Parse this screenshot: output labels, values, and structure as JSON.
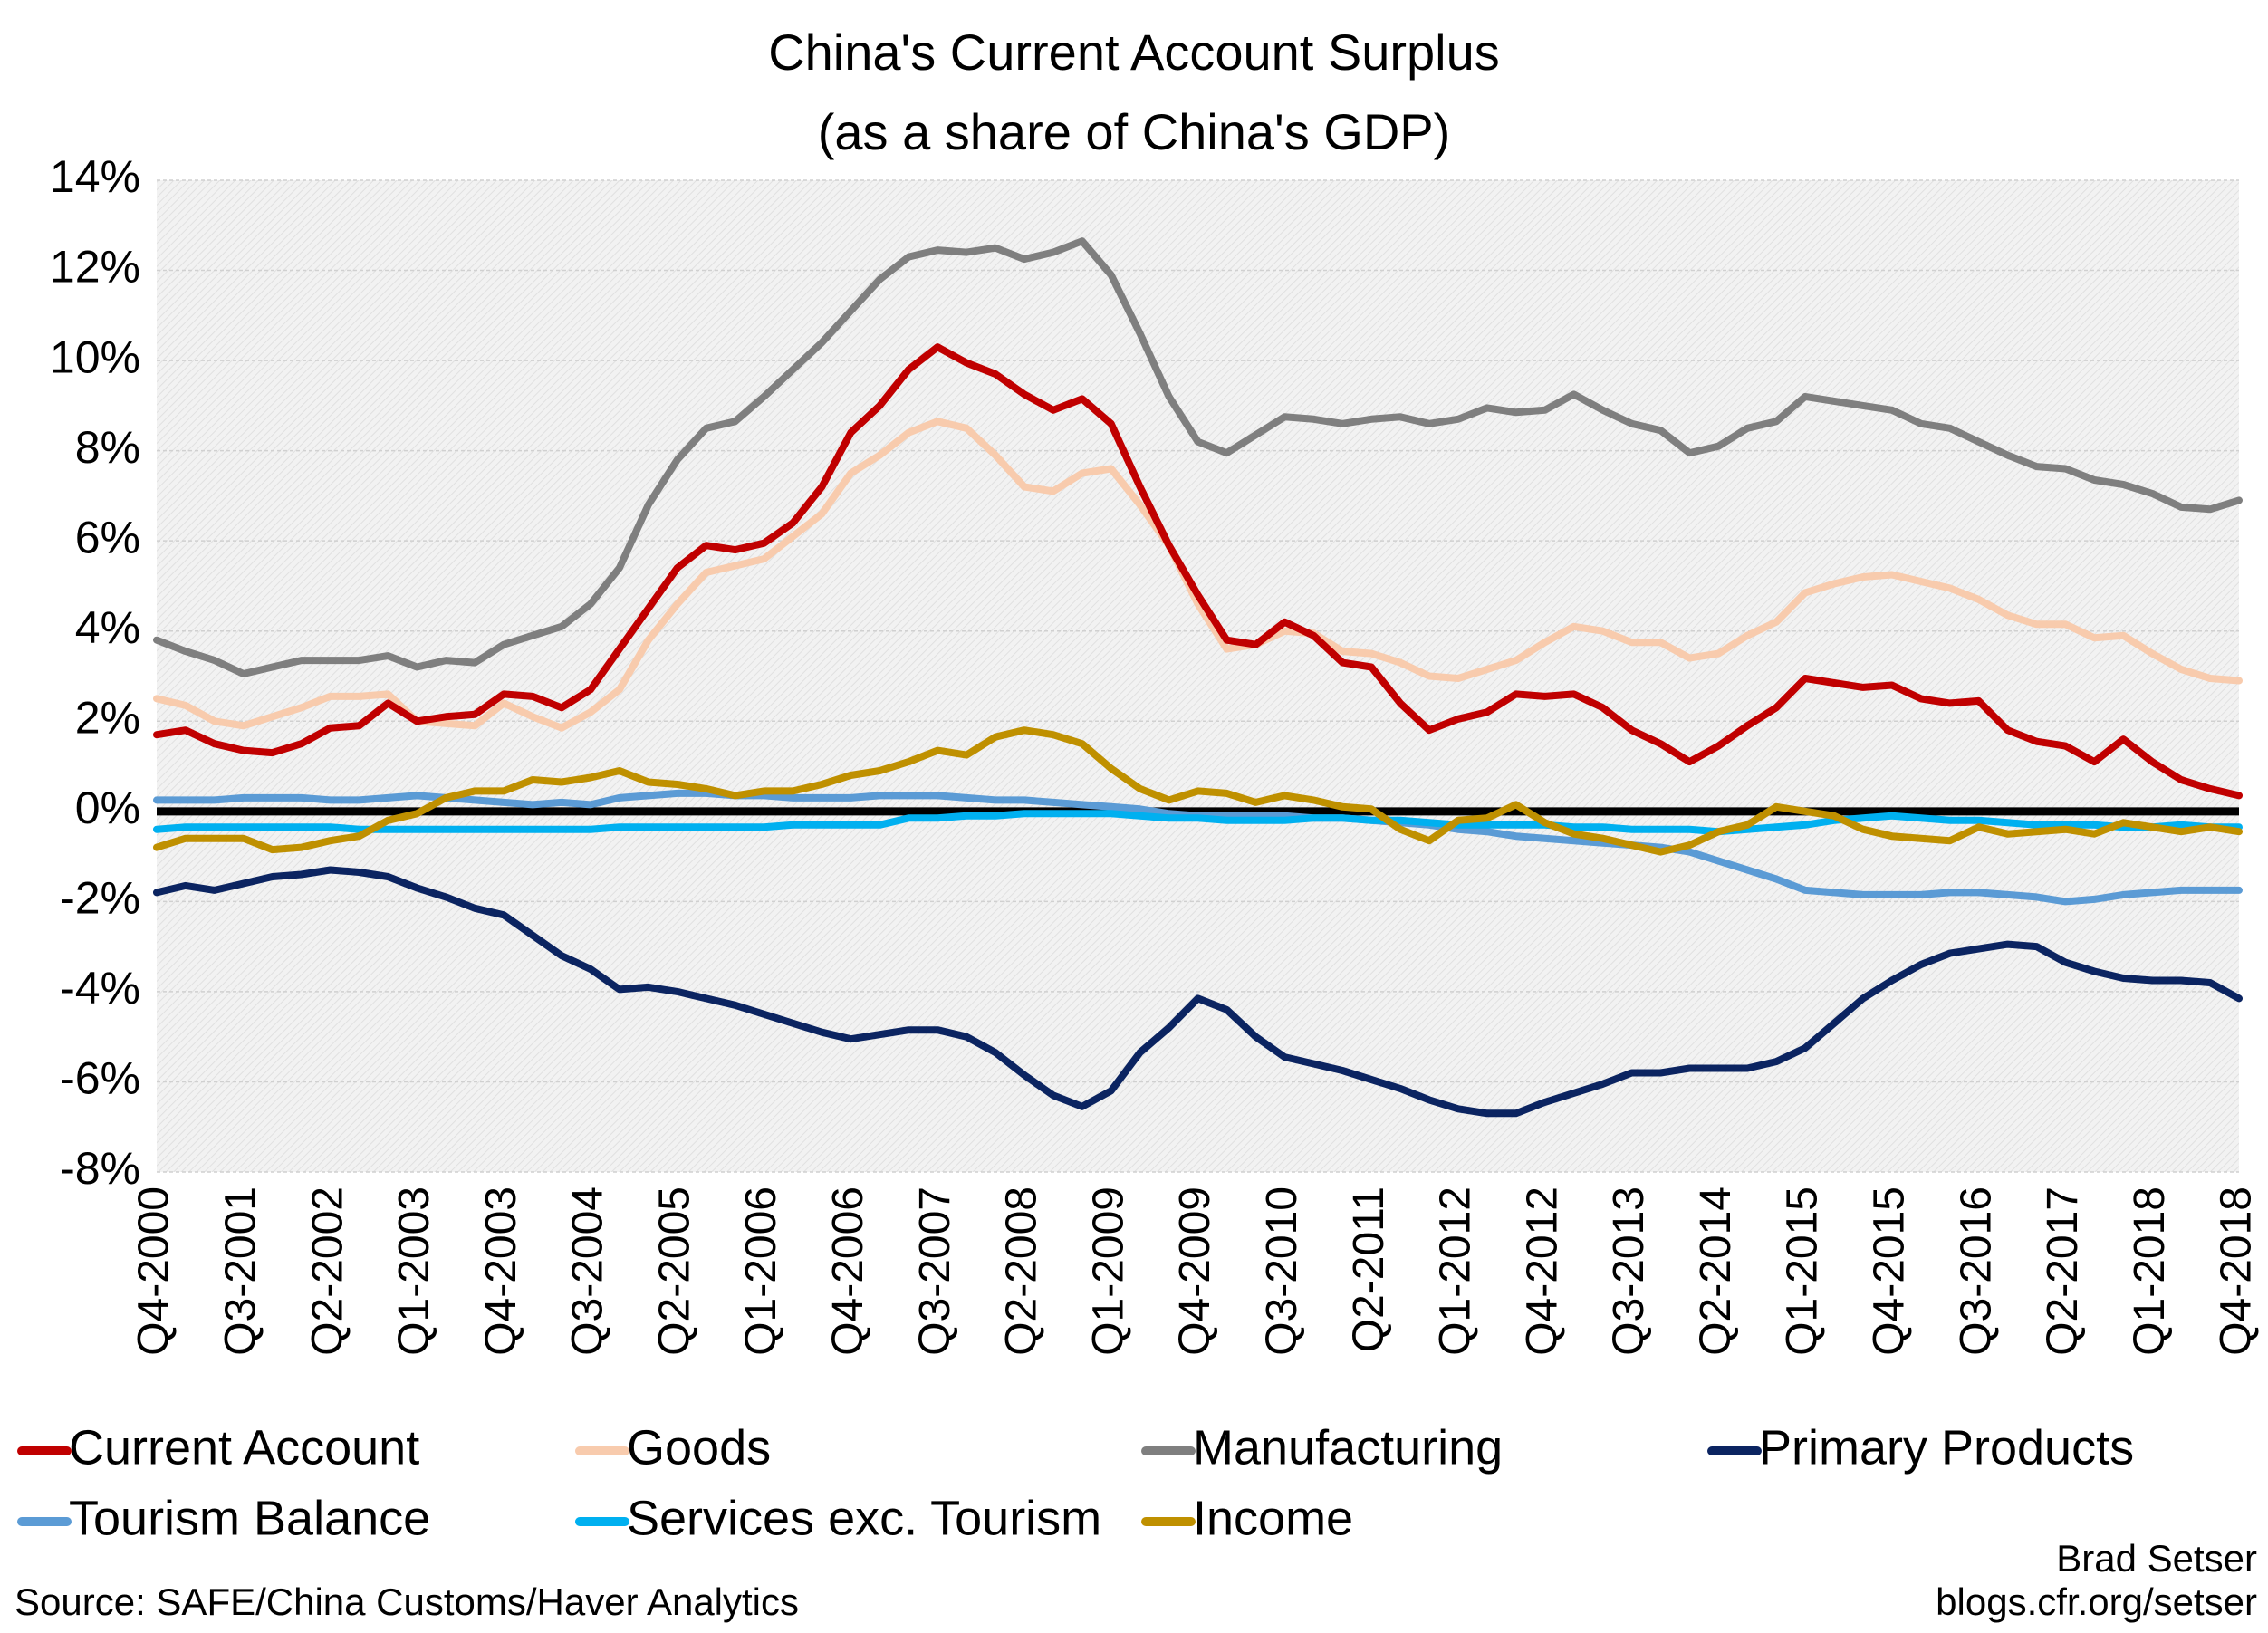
{
  "chart_data": {
    "type": "line",
    "title": "China's Current Account Surplus",
    "subtitle": "(as a share of China's GDP)",
    "source": "Source: SAFE/China Customs/Haver Analytics",
    "credit": [
      "Brad Setser",
      "blogs.cfr.org/setser"
    ],
    "categories": [
      "Q4-2000",
      null,
      null,
      "Q3-2001",
      null,
      null,
      "Q2-2002",
      null,
      null,
      "Q1-2003",
      null,
      null,
      "Q4-2003",
      null,
      null,
      "Q3-2004",
      null,
      null,
      "Q2-2005",
      null,
      null,
      "Q1-2006",
      null,
      null,
      "Q4-2006",
      null,
      null,
      "Q3-2007",
      null,
      null,
      "Q2-2008",
      null,
      null,
      "Q1-2009",
      null,
      null,
      "Q4-2009",
      null,
      null,
      "Q3-2010",
      null,
      null,
      "Q2-2011",
      null,
      null,
      "Q1-2012",
      null,
      null,
      "Q4-2012",
      null,
      null,
      "Q3-2013",
      null,
      null,
      "Q2-2014",
      null,
      null,
      "Q1-2015",
      null,
      null,
      "Q4-2015",
      null,
      null,
      "Q3-2016",
      null,
      null,
      "Q2-2017",
      null,
      null,
      "Q1-2018",
      null,
      null,
      "Q4-2018"
    ],
    "ylim": [
      -8,
      14
    ],
    "yticks": [
      {
        "value": -8,
        "label": "-8%"
      },
      {
        "value": -6,
        "label": "-6%"
      },
      {
        "value": -4,
        "label": "-4%"
      },
      {
        "value": -2,
        "label": "-2%"
      },
      {
        "value": 0,
        "label": "0%"
      },
      {
        "value": 2,
        "label": "2%"
      },
      {
        "value": 4,
        "label": "4%"
      },
      {
        "value": 6,
        "label": "6%"
      },
      {
        "value": 8,
        "label": "8%"
      },
      {
        "value": 10,
        "label": "10%"
      },
      {
        "value": 12,
        "label": "12%"
      },
      {
        "value": 14,
        "label": "14%"
      }
    ],
    "grid": true,
    "series": [
      {
        "name": "Current Account",
        "color": "#c00000",
        "values": [
          1.7,
          1.8,
          1.5,
          1.35,
          1.3,
          1.5,
          1.85,
          1.9,
          2.4,
          2.0,
          2.1,
          2.15,
          2.6,
          2.55,
          2.3,
          2.7,
          3.6,
          4.5,
          5.4,
          5.9,
          5.8,
          5.95,
          6.4,
          7.2,
          8.4,
          9.0,
          9.8,
          10.3,
          9.95,
          9.7,
          9.25,
          8.9,
          9.15,
          8.6,
          7.2,
          5.9,
          4.8,
          3.8,
          3.7,
          4.2,
          3.9,
          3.3,
          3.2,
          2.4,
          1.8,
          2.05,
          2.2,
          2.6,
          2.55,
          2.6,
          2.3,
          1.8,
          1.5,
          1.1,
          1.45,
          1.9,
          2.3,
          2.95,
          2.85,
          2.75,
          2.8,
          2.5,
          2.4,
          2.45,
          1.8,
          1.55,
          1.45,
          1.1,
          1.6,
          1.1,
          0.7,
          0.5,
          0.35
        ]
      },
      {
        "name": "Goods",
        "color": "#f8cbad",
        "values": [
          2.5,
          2.35,
          2.0,
          1.9,
          2.1,
          2.3,
          2.55,
          2.55,
          2.6,
          2.0,
          1.95,
          1.9,
          2.4,
          2.1,
          1.85,
          2.2,
          2.7,
          3.8,
          4.6,
          5.3,
          5.45,
          5.6,
          6.1,
          6.6,
          7.5,
          7.9,
          8.4,
          8.65,
          8.5,
          7.9,
          7.2,
          7.1,
          7.5,
          7.6,
          6.8,
          5.9,
          4.6,
          3.6,
          3.7,
          4.0,
          3.95,
          3.55,
          3.5,
          3.3,
          3.0,
          2.95,
          3.15,
          3.35,
          3.75,
          4.1,
          4.0,
          3.75,
          3.75,
          3.4,
          3.5,
          3.9,
          4.2,
          4.85,
          5.05,
          5.2,
          5.25,
          5.1,
          4.95,
          4.7,
          4.35,
          4.15,
          4.15,
          3.85,
          3.9,
          3.5,
          3.15,
          2.95,
          2.9
        ]
      },
      {
        "name": "Manufacturing",
        "color": "#7f7f7f",
        "values": [
          3.8,
          3.55,
          3.35,
          3.05,
          3.2,
          3.35,
          3.35,
          3.35,
          3.45,
          3.2,
          3.35,
          3.3,
          3.7,
          3.9,
          4.1,
          4.6,
          5.4,
          6.8,
          7.8,
          8.5,
          8.65,
          9.2,
          9.8,
          10.4,
          11.1,
          11.8,
          12.3,
          12.45,
          12.4,
          12.5,
          12.25,
          12.4,
          12.65,
          11.9,
          10.6,
          9.2,
          8.2,
          7.95,
          8.35,
          8.75,
          8.7,
          8.6,
          8.7,
          8.75,
          8.6,
          8.7,
          8.95,
          8.85,
          8.9,
          9.25,
          8.9,
          8.6,
          8.45,
          7.95,
          8.1,
          8.5,
          8.65,
          9.2,
          9.1,
          9.0,
          8.9,
          8.6,
          8.5,
          8.2,
          7.9,
          7.65,
          7.6,
          7.35,
          7.25,
          7.05,
          6.75,
          6.7,
          6.9
        ]
      },
      {
        "name": "Primary Products",
        "color": "#0b2461",
        "values": [
          -1.8,
          -1.65,
          -1.75,
          -1.6,
          -1.45,
          -1.4,
          -1.3,
          -1.35,
          -1.45,
          -1.7,
          -1.9,
          -2.15,
          -2.3,
          -2.75,
          -3.2,
          -3.5,
          -3.95,
          -3.9,
          -4.0,
          -4.15,
          -4.3,
          -4.5,
          -4.7,
          -4.9,
          -5.05,
          -4.95,
          -4.85,
          -4.85,
          -5.0,
          -5.35,
          -5.85,
          -6.3,
          -6.55,
          -6.2,
          -5.35,
          -4.8,
          -4.15,
          -4.4,
          -5.0,
          -5.45,
          -5.6,
          -5.75,
          -5.95,
          -6.15,
          -6.4,
          -6.6,
          -6.7,
          -6.7,
          -6.45,
          -6.25,
          -6.05,
          -5.8,
          -5.8,
          -5.7,
          -5.7,
          -5.7,
          -5.55,
          -5.25,
          -4.7,
          -4.15,
          -3.75,
          -3.4,
          -3.15,
          -3.05,
          -2.95,
          -3.0,
          -3.35,
          -3.55,
          -3.7,
          -3.75,
          -3.75,
          -3.8,
          -4.15
        ]
      },
      {
        "name": "Tourism Balance",
        "color": "#5b9bd5",
        "values": [
          0.25,
          0.25,
          0.25,
          0.3,
          0.3,
          0.3,
          0.25,
          0.25,
          0.3,
          0.35,
          0.3,
          0.25,
          0.2,
          0.15,
          0.2,
          0.15,
          0.3,
          0.35,
          0.4,
          0.4,
          0.35,
          0.35,
          0.3,
          0.3,
          0.3,
          0.35,
          0.35,
          0.35,
          0.3,
          0.25,
          0.25,
          0.2,
          0.15,
          0.1,
          0.05,
          -0.05,
          -0.1,
          -0.1,
          -0.1,
          -0.1,
          -0.15,
          -0.15,
          -0.2,
          -0.25,
          -0.3,
          -0.4,
          -0.45,
          -0.55,
          -0.6,
          -0.65,
          -0.7,
          -0.75,
          -0.8,
          -0.9,
          -1.1,
          -1.3,
          -1.5,
          -1.75,
          -1.8,
          -1.85,
          -1.85,
          -1.85,
          -1.8,
          -1.8,
          -1.85,
          -1.9,
          -2.0,
          -1.95,
          -1.85,
          -1.8,
          -1.75,
          -1.75,
          -1.75
        ]
      },
      {
        "name": "Services exc. Tourism",
        "color": "#00b0f0",
        "values": [
          -0.4,
          -0.35,
          -0.35,
          -0.35,
          -0.35,
          -0.35,
          -0.35,
          -0.4,
          -0.4,
          -0.4,
          -0.4,
          -0.4,
          -0.4,
          -0.4,
          -0.4,
          -0.4,
          -0.35,
          -0.35,
          -0.35,
          -0.35,
          -0.35,
          -0.35,
          -0.3,
          -0.3,
          -0.3,
          -0.3,
          -0.15,
          -0.15,
          -0.1,
          -0.1,
          -0.05,
          -0.05,
          -0.05,
          -0.05,
          -0.1,
          -0.15,
          -0.15,
          -0.2,
          -0.2,
          -0.2,
          -0.15,
          -0.15,
          -0.2,
          -0.2,
          -0.25,
          -0.3,
          -0.3,
          -0.3,
          -0.3,
          -0.35,
          -0.35,
          -0.4,
          -0.4,
          -0.4,
          -0.45,
          -0.4,
          -0.35,
          -0.3,
          -0.2,
          -0.15,
          -0.1,
          -0.15,
          -0.2,
          -0.2,
          -0.25,
          -0.3,
          -0.3,
          -0.3,
          -0.35,
          -0.35,
          -0.3,
          -0.35,
          -0.35
        ]
      },
      {
        "name": "Income",
        "color": "#bf9000",
        "values": [
          -0.8,
          -0.6,
          -0.6,
          -0.6,
          -0.85,
          -0.8,
          -0.65,
          -0.55,
          -0.2,
          -0.05,
          0.3,
          0.45,
          0.45,
          0.7,
          0.65,
          0.75,
          0.9,
          0.65,
          0.6,
          0.5,
          0.35,
          0.45,
          0.45,
          0.6,
          0.8,
          0.9,
          1.1,
          1.35,
          1.25,
          1.65,
          1.8,
          1.7,
          1.5,
          0.95,
          0.5,
          0.25,
          0.45,
          0.4,
          0.2,
          0.35,
          0.25,
          0.1,
          0.05,
          -0.4,
          -0.65,
          -0.2,
          -0.15,
          0.15,
          -0.25,
          -0.5,
          -0.6,
          -0.75,
          -0.9,
          -0.75,
          -0.45,
          -0.3,
          0.1,
          0.0,
          -0.1,
          -0.4,
          -0.55,
          -0.6,
          -0.65,
          -0.35,
          -0.5,
          -0.45,
          -0.4,
          -0.5,
          -0.25,
          -0.35,
          -0.45,
          -0.35,
          -0.45
        ]
      }
    ]
  }
}
